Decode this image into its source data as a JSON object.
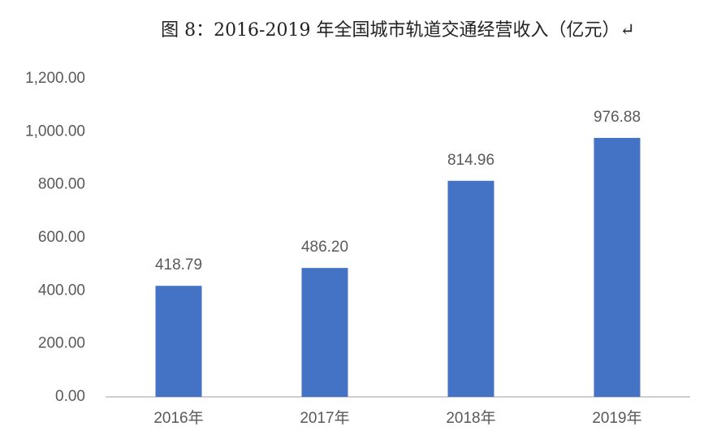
{
  "chart_data": {
    "type": "bar",
    "title": "图 8：2016-2019 年全国城市轨道交通经营收入（亿元）↵",
    "categories": [
      "2016年",
      "2017年",
      "2018年",
      "2019年"
    ],
    "values": [
      418.79,
      486.2,
      814.96,
      976.88
    ],
    "value_labels": [
      "418.79",
      "486.20",
      "814.96",
      "976.88"
    ],
    "color": "#4472c4",
    "ylim": [
      0,
      1200
    ],
    "yticks": [
      {
        "value": 0,
        "label": "0.00"
      },
      {
        "value": 200,
        "label": "200.00"
      },
      {
        "value": 400,
        "label": "400.00"
      },
      {
        "value": 600,
        "label": "600.00"
      },
      {
        "value": 800,
        "label": "800.00"
      },
      {
        "value": 1000,
        "label": "1,000.00"
      },
      {
        "value": 1200,
        "label": "1,200.00"
      }
    ],
    "grid": false
  }
}
